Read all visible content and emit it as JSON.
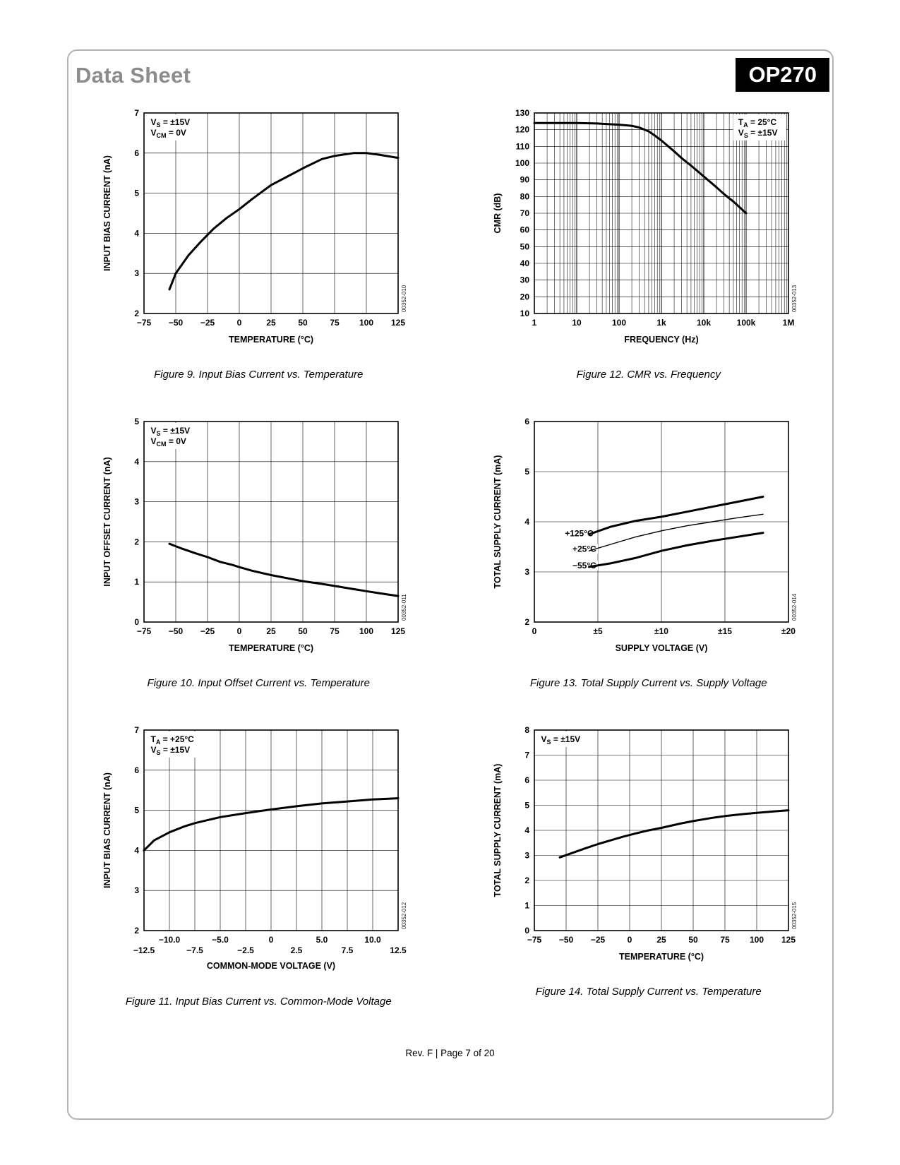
{
  "header": {
    "doc_type": "Data Sheet",
    "part_number": "OP270"
  },
  "footer": {
    "text": "Rev. F | Page 7 of 20"
  },
  "chart_data": [
    {
      "id": "figure-9",
      "type": "line",
      "caption": "Figure 9. Input Bias Current vs. Temperature",
      "code": "00352-010",
      "xlabel": "TEMPERATURE (°C)",
      "ylabel": "INPUT BIAS CURRENT (nA)",
      "x": {
        "type": "linear",
        "min": -75,
        "max": 125,
        "stagger": false,
        "ticks": [
          {
            "v": -75,
            "label": "−75"
          },
          {
            "v": -50,
            "label": "−50"
          },
          {
            "v": -25,
            "label": "−25"
          },
          {
            "v": 0,
            "label": "0"
          },
          {
            "v": 25,
            "label": "25"
          },
          {
            "v": 50,
            "label": "50"
          },
          {
            "v": 75,
            "label": "75"
          },
          {
            "v": 100,
            "label": "100"
          },
          {
            "v": 125,
            "label": "125"
          }
        ]
      },
      "y": {
        "min": 2,
        "max": 7,
        "ticks": [
          2,
          3,
          4,
          5,
          6,
          7
        ]
      },
      "annotation": {
        "pos": "tl",
        "lines": [
          [
            {
              "t": "V"
            },
            {
              "t": "S",
              "sub": true
            },
            {
              "t": " = ±15V"
            }
          ],
          [
            {
              "t": "V"
            },
            {
              "t": "CM",
              "sub": true
            },
            {
              "t": " = 0V"
            }
          ]
        ]
      },
      "series": [
        {
          "name": "input-bias-current",
          "width": 3,
          "points": [
            [
              -55,
              2.6
            ],
            [
              -50,
              3.0
            ],
            [
              -40,
              3.45
            ],
            [
              -30,
              3.8
            ],
            [
              -20,
              4.12
            ],
            [
              -10,
              4.38
            ],
            [
              0,
              4.6
            ],
            [
              10,
              4.85
            ],
            [
              25,
              5.2
            ],
            [
              40,
              5.45
            ],
            [
              50,
              5.62
            ],
            [
              65,
              5.85
            ],
            [
              75,
              5.93
            ],
            [
              90,
              6.0
            ],
            [
              100,
              6.0
            ],
            [
              110,
              5.96
            ],
            [
              125,
              5.88
            ]
          ]
        }
      ]
    },
    {
      "id": "figure-12",
      "type": "line",
      "caption": "Figure 12. CMR vs. Frequency",
      "code": "00352-013",
      "xlabel": "FREQUENCY (Hz)",
      "ylabel": "CMR (dB)",
      "x": {
        "type": "log",
        "min": 1,
        "max": 1000000,
        "stagger": false,
        "ticks": [
          {
            "v": 1,
            "label": "1"
          },
          {
            "v": 10,
            "label": "10"
          },
          {
            "v": 100,
            "label": "100"
          },
          {
            "v": 1000,
            "label": "1k"
          },
          {
            "v": 10000,
            "label": "10k"
          },
          {
            "v": 100000,
            "label": "100k"
          },
          {
            "v": 1000000,
            "label": "1M"
          }
        ]
      },
      "y": {
        "min": 10,
        "max": 130,
        "ticks": [
          10,
          20,
          30,
          40,
          50,
          60,
          70,
          80,
          90,
          100,
          110,
          120,
          130
        ]
      },
      "annotation": {
        "pos": "tr",
        "lines": [
          [
            {
              "t": "T"
            },
            {
              "t": "A",
              "sub": true
            },
            {
              "t": " = 25°C"
            }
          ],
          [
            {
              "t": "V"
            },
            {
              "t": "S",
              "sub": true
            },
            {
              "t": " = ±15V"
            }
          ]
        ]
      },
      "series": [
        {
          "name": "cmr",
          "width": 3,
          "points": [
            [
              1,
              124
            ],
            [
              10,
              124
            ],
            [
              30,
              123.7
            ],
            [
              100,
              123
            ],
            [
              200,
              122.3
            ],
            [
              300,
              121.3
            ],
            [
              500,
              119
            ],
            [
              700,
              116.5
            ],
            [
              1000,
              113.5
            ],
            [
              2000,
              107
            ],
            [
              3000,
              103
            ],
            [
              5000,
              98.5
            ],
            [
              10000,
              92
            ],
            [
              20000,
              85.5
            ],
            [
              30000,
              81.5
            ],
            [
              50000,
              77
            ],
            [
              100000,
              70
            ]
          ]
        }
      ]
    },
    {
      "id": "figure-10",
      "type": "line",
      "caption": "Figure 10. Input Offset Current vs. Temperature",
      "code": "00352-011",
      "xlabel": "TEMPERATURE (°C)",
      "ylabel": "INPUT OFFSET CURRENT (nA)",
      "x": {
        "type": "linear",
        "min": -75,
        "max": 125,
        "stagger": false,
        "ticks": [
          {
            "v": -75,
            "label": "−75"
          },
          {
            "v": -50,
            "label": "−50"
          },
          {
            "v": -25,
            "label": "−25"
          },
          {
            "v": 0,
            "label": "0"
          },
          {
            "v": 25,
            "label": "25"
          },
          {
            "v": 50,
            "label": "50"
          },
          {
            "v": 75,
            "label": "75"
          },
          {
            "v": 100,
            "label": "100"
          },
          {
            "v": 125,
            "label": "125"
          }
        ]
      },
      "y": {
        "min": 0,
        "max": 5,
        "ticks": [
          0,
          1,
          2,
          3,
          4,
          5
        ]
      },
      "annotation": {
        "pos": "tl",
        "lines": [
          [
            {
              "t": "V"
            },
            {
              "t": "S",
              "sub": true
            },
            {
              "t": " = ±15V"
            }
          ],
          [
            {
              "t": "V"
            },
            {
              "t": "CM",
              "sub": true
            },
            {
              "t": " = 0V"
            }
          ]
        ]
      },
      "series": [
        {
          "name": "input-offset-current",
          "width": 3,
          "points": [
            [
              -55,
              1.95
            ],
            [
              -45,
              1.83
            ],
            [
              -35,
              1.72
            ],
            [
              -25,
              1.62
            ],
            [
              -15,
              1.5
            ],
            [
              -5,
              1.42
            ],
            [
              0,
              1.37
            ],
            [
              10,
              1.28
            ],
            [
              25,
              1.17
            ],
            [
              40,
              1.08
            ],
            [
              50,
              1.02
            ],
            [
              65,
              0.95
            ],
            [
              75,
              0.9
            ],
            [
              90,
              0.82
            ],
            [
              100,
              0.77
            ],
            [
              110,
              0.72
            ],
            [
              125,
              0.65
            ]
          ]
        }
      ]
    },
    {
      "id": "figure-13",
      "type": "line",
      "caption": "Figure 13. Total Supply Current vs. Supply Voltage",
      "code": "00352-014",
      "xlabel": "SUPPLY VOLTAGE (V)",
      "ylabel": "TOTAL SUPPLY CURRENT (mA)",
      "x": {
        "type": "linear",
        "min": 0,
        "max": 20,
        "stagger": false,
        "ticks": [
          {
            "v": 0,
            "label": "0"
          },
          {
            "v": 5,
            "label": "±5"
          },
          {
            "v": 10,
            "label": "±10"
          },
          {
            "v": 15,
            "label": "±15"
          },
          {
            "v": 20,
            "label": "±20"
          }
        ]
      },
      "y": {
        "min": 2,
        "max": 6,
        "ticks": [
          2,
          3,
          4,
          5,
          6
        ]
      },
      "series_labels": [
        {
          "x": 2.4,
          "y": 3.77,
          "text": "+125°C"
        },
        {
          "x": 3.0,
          "y": 3.46,
          "text": "+25°C"
        },
        {
          "x": 3.0,
          "y": 3.13,
          "text": "−55°C"
        }
      ],
      "series": [
        {
          "name": "+125°C",
          "width": 3,
          "points": [
            [
              4.3,
              3.75
            ],
            [
              6,
              3.9
            ],
            [
              8,
              4.02
            ],
            [
              10,
              4.1
            ],
            [
              12,
              4.2
            ],
            [
              14,
              4.3
            ],
            [
              16,
              4.4
            ],
            [
              18,
              4.5
            ]
          ]
        },
        {
          "name": "+25°C",
          "width": 1.4,
          "points": [
            [
              4.3,
              3.42
            ],
            [
              6,
              3.55
            ],
            [
              8,
              3.7
            ],
            [
              10,
              3.82
            ],
            [
              12,
              3.92
            ],
            [
              14,
              4.0
            ],
            [
              16,
              4.08
            ],
            [
              18,
              4.15
            ]
          ]
        },
        {
          "name": "−55°C",
          "width": 3,
          "points": [
            [
              4.3,
              3.1
            ],
            [
              6,
              3.17
            ],
            [
              8,
              3.28
            ],
            [
              10,
              3.42
            ],
            [
              12,
              3.53
            ],
            [
              14,
              3.62
            ],
            [
              16,
              3.7
            ],
            [
              18,
              3.78
            ]
          ]
        }
      ]
    },
    {
      "id": "figure-11",
      "type": "line",
      "caption": "Figure 11. Input Bias Current vs. Common-Mode Voltage",
      "code": "00352-012",
      "xlabel": "COMMON-MODE VOLTAGE (V)",
      "ylabel": "INPUT BIAS CURRENT (nA)",
      "x": {
        "type": "linear",
        "min": -12.5,
        "max": 12.5,
        "stagger": true,
        "ticks": [
          {
            "v": -12.5,
            "label": "−12.5"
          },
          {
            "v": -10,
            "label": "−10.0"
          },
          {
            "v": -7.5,
            "label": "−7.5"
          },
          {
            "v": -5,
            "label": "−5.0"
          },
          {
            "v": -2.5,
            "label": "−2.5"
          },
          {
            "v": 0,
            "label": "0"
          },
          {
            "v": 2.5,
            "label": "2.5"
          },
          {
            "v": 5,
            "label": "5.0"
          },
          {
            "v": 7.5,
            "label": "7.5"
          },
          {
            "v": 10,
            "label": "10.0"
          },
          {
            "v": 12.5,
            "label": "12.5"
          }
        ]
      },
      "y": {
        "min": 2,
        "max": 7,
        "ticks": [
          2,
          3,
          4,
          5,
          6,
          7
        ]
      },
      "annotation": {
        "pos": "tl",
        "lines": [
          [
            {
              "t": "T"
            },
            {
              "t": "A",
              "sub": true
            },
            {
              "t": " = +25°C"
            }
          ],
          [
            {
              "t": "V"
            },
            {
              "t": "S",
              "sub": true
            },
            {
              "t": " = ±15V"
            }
          ]
        ]
      },
      "series": [
        {
          "name": "input-bias-current",
          "width": 3,
          "points": [
            [
              -12.5,
              4.0
            ],
            [
              -11.5,
              4.25
            ],
            [
              -10,
              4.45
            ],
            [
              -8.5,
              4.6
            ],
            [
              -7.5,
              4.68
            ],
            [
              -5,
              4.83
            ],
            [
              -2.5,
              4.93
            ],
            [
              0,
              5.02
            ],
            [
              2.5,
              5.1
            ],
            [
              5,
              5.17
            ],
            [
              7.5,
              5.22
            ],
            [
              10,
              5.27
            ],
            [
              12.5,
              5.3
            ]
          ]
        }
      ]
    },
    {
      "id": "figure-14",
      "type": "line",
      "caption": "Figure 14. Total Supply Current vs. Temperature",
      "code": "00352-015",
      "xlabel": "TEMPERATURE (°C)",
      "ylabel": "TOTAL SUPPLY CURRENT (mA)",
      "x": {
        "type": "linear",
        "min": -75,
        "max": 125,
        "stagger": false,
        "ticks": [
          {
            "v": -75,
            "label": "−75"
          },
          {
            "v": -50,
            "label": "−50"
          },
          {
            "v": -25,
            "label": "−25"
          },
          {
            "v": 0,
            "label": "0"
          },
          {
            "v": 25,
            "label": "25"
          },
          {
            "v": 50,
            "label": "50"
          },
          {
            "v": 75,
            "label": "75"
          },
          {
            "v": 100,
            "label": "100"
          },
          {
            "v": 125,
            "label": "125"
          }
        ]
      },
      "y": {
        "min": 0,
        "max": 8,
        "ticks": [
          0,
          1,
          2,
          3,
          4,
          5,
          6,
          7,
          8
        ]
      },
      "annotation": {
        "pos": "tl",
        "lines": [
          [
            {
              "t": "V"
            },
            {
              "t": "S",
              "sub": true
            },
            {
              "t": " = ±15V"
            }
          ]
        ]
      },
      "series": [
        {
          "name": "total-supply-current",
          "width": 3,
          "points": [
            [
              -55,
              2.92
            ],
            [
              -45,
              3.1
            ],
            [
              -35,
              3.28
            ],
            [
              -25,
              3.45
            ],
            [
              -15,
              3.6
            ],
            [
              -5,
              3.75
            ],
            [
              5,
              3.88
            ],
            [
              15,
              4.0
            ],
            [
              25,
              4.1
            ],
            [
              40,
              4.27
            ],
            [
              50,
              4.37
            ],
            [
              65,
              4.5
            ],
            [
              75,
              4.57
            ],
            [
              90,
              4.65
            ],
            [
              100,
              4.7
            ],
            [
              115,
              4.76
            ],
            [
              125,
              4.8
            ]
          ]
        }
      ]
    }
  ]
}
